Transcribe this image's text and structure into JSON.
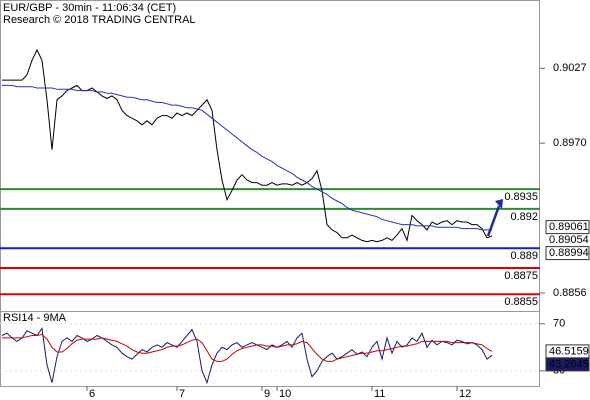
{
  "chart_data": [
    {
      "type": "line",
      "title": "EUR/GBP - 30min - 11:06:34 (CET)",
      "subtitle": "Research © 2018 TRADING CENTRAL",
      "ylim": [
        0.8843,
        0.9079
      ],
      "yticks": [
        0.9027,
        {
          "value": 0.897,
          "label": "0.8970"
        },
        0.8856
      ],
      "series": [
        {
          "color": "#000000",
          "values": [
            0.9018,
            0.9018,
            0.9018,
            0.9018,
            0.9018,
            0.9022,
            0.9033,
            0.9041,
            0.9033,
            0.9003,
            0.8965,
            0.9003,
            0.9006,
            0.901,
            0.9012,
            0.9014,
            0.901,
            0.901,
            0.9012,
            0.9009,
            0.9006,
            0.9004,
            0.9006,
            0.9003,
            0.8995,
            0.8991,
            0.8989,
            0.8987,
            0.8984,
            0.8987,
            0.8984,
            0.8989,
            0.8991,
            0.8991,
            0.8989,
            0.8993,
            0.8991,
            0.8993,
            0.8991,
            0.8995,
            0.8999,
            0.9003,
            0.8995,
            0.8965,
            0.8942,
            0.8927,
            0.8934,
            0.8942,
            0.8946,
            0.8942,
            0.894,
            0.894,
            0.8938,
            0.8938,
            0.894,
            0.8938,
            0.8939,
            0.8939,
            0.8938,
            0.894,
            0.8938,
            0.894,
            0.8943,
            0.8949,
            0.8934,
            0.8908,
            0.8904,
            0.8902,
            0.8898,
            0.8898,
            0.89,
            0.8898,
            0.8896,
            0.8895,
            0.8896,
            0.8895,
            0.8896,
            0.8898,
            0.8896,
            0.89,
            0.8905,
            0.8896,
            0.8915,
            0.8911,
            0.8908,
            0.8904,
            0.891,
            0.8908,
            0.891,
            0.8911,
            0.8908,
            0.8911,
            0.891,
            0.891,
            0.8908,
            0.8908,
            0.8905,
            0.8898,
            0.88994
          ]
        },
        {
          "color": "#2233bb",
          "values": [
            0.9014,
            0.9014,
            0.9014,
            0.9013,
            0.9013,
            0.9013,
            0.9013,
            0.9012,
            0.9012,
            0.9012,
            0.9012,
            0.9011,
            0.9011,
            0.9011,
            0.9011,
            0.901,
            0.901,
            0.901,
            0.901,
            0.9009,
            0.9009,
            0.9008,
            0.9008,
            0.9007,
            0.9006,
            0.9005,
            0.9005,
            0.9004,
            0.9003,
            0.9003,
            0.9002,
            0.9001,
            0.9001,
            0.9,
            0.8999,
            0.8999,
            0.8998,
            0.8997,
            0.8997,
            0.8996,
            0.8995,
            0.8992,
            0.8989,
            0.8986,
            0.8983,
            0.898,
            0.8977,
            0.8974,
            0.8971,
            0.8968,
            0.8965,
            0.8963,
            0.896,
            0.8958,
            0.8956,
            0.8953,
            0.8951,
            0.8949,
            0.8947,
            0.8944,
            0.8942,
            0.894,
            0.8937,
            0.8935,
            0.8933,
            0.8931,
            0.8928,
            0.8926,
            0.8924,
            0.8921,
            0.8919,
            0.8918,
            0.8917,
            0.8916,
            0.8915,
            0.8914,
            0.8912,
            0.8911,
            0.891,
            0.8909,
            0.8908,
            0.8908,
            0.8908,
            0.8907,
            0.8907,
            0.8907,
            0.8907,
            0.8906,
            0.8906,
            0.8906,
            0.8906,
            0.8906,
            0.8905,
            0.8905,
            0.8905,
            0.8905,
            0.8904,
            0.8904,
            0.8904
          ]
        }
      ],
      "levels": [
        {
          "value": 0.8935,
          "color": "#2e8b2e"
        },
        {
          "value": 0.892,
          "color": "#2e8b2e"
        },
        {
          "value": 0.889,
          "color": "#1a1acc"
        },
        {
          "value": 0.8875,
          "color": "#e00000"
        },
        {
          "value": 0.8855,
          "color": "#e00000"
        }
      ],
      "tags": [
        {
          "value": 0.89061,
          "color": "#000000"
        },
        {
          "value": 0.89054,
          "color": "#e00000"
        }
      ]
    },
    {
      "type": "line",
      "title": "RSI14 - 9MA",
      "categories": [
        null,
        null,
        null,
        null,
        null,
        null,
        null,
        null,
        null,
        null,
        null,
        null,
        null,
        null,
        null,
        null,
        null,
        "6",
        null,
        null,
        null,
        null,
        null,
        null,
        null,
        null,
        null,
        null,
        null,
        null,
        null,
        null,
        null,
        null,
        null,
        "7",
        null,
        null,
        null,
        null,
        null,
        null,
        null,
        null,
        null,
        null,
        null,
        null,
        null,
        null,
        null,
        null,
        "9",
        null,
        null,
        "10",
        null,
        null,
        null,
        null,
        null,
        null,
        null,
        null,
        null,
        null,
        null,
        null,
        null,
        null,
        null,
        null,
        null,
        null,
        "11",
        null,
        null,
        null,
        null,
        null,
        null,
        null,
        null,
        null,
        null,
        null,
        null,
        null,
        null,
        null,
        null,
        "12",
        null,
        null,
        null,
        null,
        null,
        null,
        null
      ],
      "ylim": [
        12,
        80
      ],
      "yticks": [
        70,
        30
      ],
      "series": [
        {
          "color": "#1a1a66",
          "values": [
            60,
            62,
            58,
            55,
            58,
            64,
            62,
            60,
            66,
            35,
            20,
            42,
            55,
            58,
            55,
            60,
            58,
            55,
            57,
            60,
            58,
            55,
            52,
            50,
            45,
            42,
            40,
            44,
            48,
            46,
            50,
            52,
            50,
            54,
            52,
            50,
            55,
            60,
            65,
            55,
            30,
            20,
            35,
            45,
            50,
            48,
            52,
            54,
            50,
            52,
            54,
            52,
            50,
            48,
            52,
            50,
            52,
            55,
            50,
            58,
            62,
            40,
            25,
            30,
            38,
            42,
            45,
            40,
            42,
            45,
            48,
            44,
            46,
            42,
            50,
            55,
            40,
            58,
            45,
            55,
            50,
            52,
            58,
            55,
            62,
            50,
            56,
            52,
            55,
            54,
            52,
            56,
            55,
            53,
            54,
            52,
            48,
            40,
            43.2645
          ]
        },
        {
          "color": "#cc0000",
          "values": [
            58,
            58,
            58,
            58,
            58,
            59,
            60,
            60,
            61,
            57,
            50,
            46,
            46,
            49,
            53,
            56,
            57,
            57,
            57,
            57,
            58,
            57,
            56,
            55,
            53,
            51,
            48,
            46,
            45,
            45,
            46,
            47,
            48,
            50,
            51,
            51,
            52,
            54,
            56,
            57,
            54,
            47,
            40,
            38,
            38,
            40,
            44,
            47,
            49,
            50,
            51,
            52,
            52,
            51,
            51,
            50,
            51,
            52,
            52,
            53,
            55,
            54,
            49,
            44,
            40,
            38,
            38,
            40,
            41,
            42,
            43,
            44,
            45,
            45,
            46,
            47,
            47,
            48,
            49,
            50,
            51,
            51,
            52,
            53,
            55,
            55,
            55,
            55,
            55,
            55,
            54,
            54,
            54,
            54,
            54,
            53,
            52,
            49,
            46.5159
          ]
        }
      ]
    }
  ]
}
